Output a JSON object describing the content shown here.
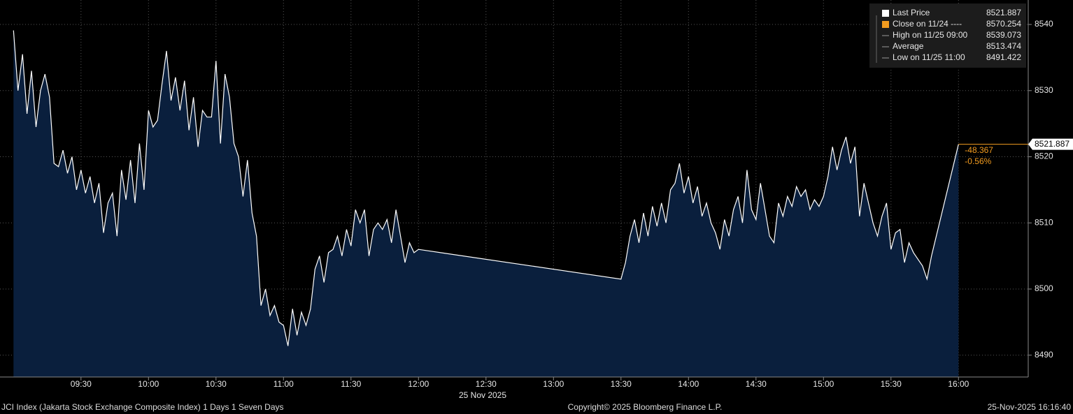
{
  "chart_data": {
    "type": "area",
    "color": "#ffffff",
    "fill": "#0a1f3d",
    "x": [
      "09:00",
      "09:02",
      "09:04",
      "09:06",
      "09:08",
      "09:10",
      "09:12",
      "09:14",
      "09:16",
      "09:18",
      "09:20",
      "09:22",
      "09:24",
      "09:26",
      "09:28",
      "09:30",
      "09:32",
      "09:34",
      "09:36",
      "09:38",
      "09:40",
      "09:42",
      "09:44",
      "09:46",
      "09:48",
      "09:50",
      "09:52",
      "09:54",
      "09:56",
      "09:58",
      "10:00",
      "10:02",
      "10:04",
      "10:06",
      "10:08",
      "10:10",
      "10:12",
      "10:14",
      "10:16",
      "10:18",
      "10:20",
      "10:22",
      "10:24",
      "10:26",
      "10:28",
      "10:30",
      "10:32",
      "10:34",
      "10:36",
      "10:38",
      "10:40",
      "10:42",
      "10:44",
      "10:46",
      "10:48",
      "10:50",
      "10:52",
      "10:54",
      "10:56",
      "10:58",
      "11:00",
      "11:02",
      "11:04",
      "11:06",
      "11:08",
      "11:10",
      "11:12",
      "11:14",
      "11:16",
      "11:18",
      "11:20",
      "11:22",
      "11:24",
      "11:26",
      "11:28",
      "11:30",
      "11:32",
      "11:34",
      "11:36",
      "11:38",
      "11:40",
      "11:42",
      "11:44",
      "11:46",
      "11:48",
      "11:50",
      "11:52",
      "11:54",
      "11:56",
      "11:58",
      "12:00",
      "13:30",
      "13:32",
      "13:34",
      "13:36",
      "13:38",
      "13:40",
      "13:42",
      "13:44",
      "13:46",
      "13:48",
      "13:50",
      "13:52",
      "13:54",
      "13:56",
      "13:58",
      "14:00",
      "14:02",
      "14:04",
      "14:06",
      "14:08",
      "14:10",
      "14:12",
      "14:14",
      "14:16",
      "14:18",
      "14:20",
      "14:22",
      "14:24",
      "14:26",
      "14:28",
      "14:30",
      "14:32",
      "14:34",
      "14:36",
      "14:38",
      "14:40",
      "14:42",
      "14:44",
      "14:46",
      "14:48",
      "14:50",
      "14:52",
      "14:54",
      "14:56",
      "14:58",
      "15:00",
      "15:02",
      "15:04",
      "15:06",
      "15:08",
      "15:10",
      "15:12",
      "15:14",
      "15:16",
      "15:18",
      "15:20",
      "15:22",
      "15:24",
      "15:26",
      "15:28",
      "15:30",
      "15:32",
      "15:34",
      "15:36",
      "15:38",
      "15:40",
      "15:42",
      "15:44",
      "15:46",
      "15:48",
      "16:00"
    ],
    "values": [
      8539.1,
      8530.0,
      8535.5,
      8526.5,
      8533.0,
      8524.5,
      8530.0,
      8532.5,
      8529.0,
      8519.0,
      8518.5,
      8521.0,
      8517.5,
      8520.0,
      8515.0,
      8518.0,
      8514.5,
      8517.0,
      8513.0,
      8516.0,
      8508.5,
      8513.0,
      8514.5,
      8508.0,
      8518.0,
      8513.5,
      8519.5,
      8513.0,
      8522.0,
      8515.0,
      8527.0,
      8524.5,
      8525.5,
      8531.0,
      8536.0,
      8528.5,
      8532.0,
      8527.0,
      8531.5,
      8524.0,
      8529.0,
      8521.5,
      8527.0,
      8526.0,
      8526.0,
      8534.5,
      8522.0,
      8532.5,
      8529.0,
      8522.0,
      8520.0,
      8514.0,
      8519.5,
      8511.5,
      8508.0,
      8497.5,
      8500.0,
      8496.0,
      8497.5,
      8495.0,
      8494.5,
      8491.4,
      8497.0,
      8493.0,
      8496.5,
      8494.5,
      8497.0,
      8503.0,
      8505.0,
      8501.0,
      8505.5,
      8506.0,
      8508.0,
      8505.0,
      8509.0,
      8506.5,
      8512.0,
      8510.0,
      8512.0,
      8505.0,
      8509.0,
      8510.0,
      8509.0,
      8510.5,
      8507.0,
      8512.0,
      8508.0,
      8504.0,
      8507.0,
      8505.5,
      8506.0,
      8501.5,
      8504.0,
      8508.0,
      8510.5,
      8507.0,
      8511.5,
      8508.0,
      8512.5,
      8509.5,
      8513.0,
      8510.0,
      8515.0,
      8516.0,
      8519.0,
      8514.5,
      8517.0,
      8513.0,
      8515.5,
      8511.0,
      8513.0,
      8510.0,
      8508.5,
      8506.0,
      8510.5,
      8508.0,
      8512.0,
      8514.0,
      8510.0,
      8518.0,
      8512.0,
      8510.5,
      8516.0,
      8512.0,
      8508.0,
      8507.0,
      8513.0,
      8511.0,
      8514.0,
      8512.5,
      8515.5,
      8514.0,
      8515.0,
      8512.0,
      8513.5,
      8512.5,
      8514.0,
      8517.0,
      8521.5,
      8518.0,
      8521.0,
      8523.0,
      8519.0,
      8521.5,
      8511.0,
      8516.0,
      8513.0,
      8510.0,
      8508.0,
      8511.0,
      8513.0,
      8506.0,
      8508.5,
      8509.0,
      8504.0,
      8507.0,
      8505.5,
      8504.5,
      8503.5,
      8501.5,
      8505.0,
      8521.887
    ],
    "xlim": [
      "08:54",
      "16:31"
    ],
    "xticks": [
      "09:30",
      "10:00",
      "10:30",
      "11:00",
      "11:30",
      "12:00",
      "12:30",
      "13:00",
      "13:30",
      "14:00",
      "14:30",
      "15:00",
      "15:30",
      "16:00"
    ],
    "xlabel": "25 Nov 2025",
    "ylim": [
      8486.7,
      8543.7
    ],
    "yticks": [
      8490,
      8500,
      8510,
      8520,
      8530,
      8540
    ],
    "grid": true,
    "legend": [
      {
        "label": "Last Price",
        "value": 8521.887,
        "color": "#ffffff"
      },
      {
        "label": "Close on 11/24 ----",
        "value": 8570.254,
        "color": "#f39c1f"
      },
      {
        "label": "High on 11/25 09:00",
        "value": 8539.073,
        "color": "#9a9a9a"
      },
      {
        "label": "Average",
        "value": 8513.474,
        "color": "#9a9a9a"
      },
      {
        "label": "Low on 11/25 11:00",
        "value": 8491.422,
        "color": "#9a9a9a"
      }
    ],
    "change": -48.367,
    "change_percent": {
      "value": -0.56,
      "label": "-0.56%"
    },
    "change_color": "#f39c1f",
    "footer": {
      "left": "JCI Index (Jakarta Stock Exchange Composite Index) 1 Days 1 Seven Days",
      "center": "Copyright© 2025 Bloomberg Finance L.P.",
      "right": "25-Nov-2025 16:16:40"
    }
  }
}
